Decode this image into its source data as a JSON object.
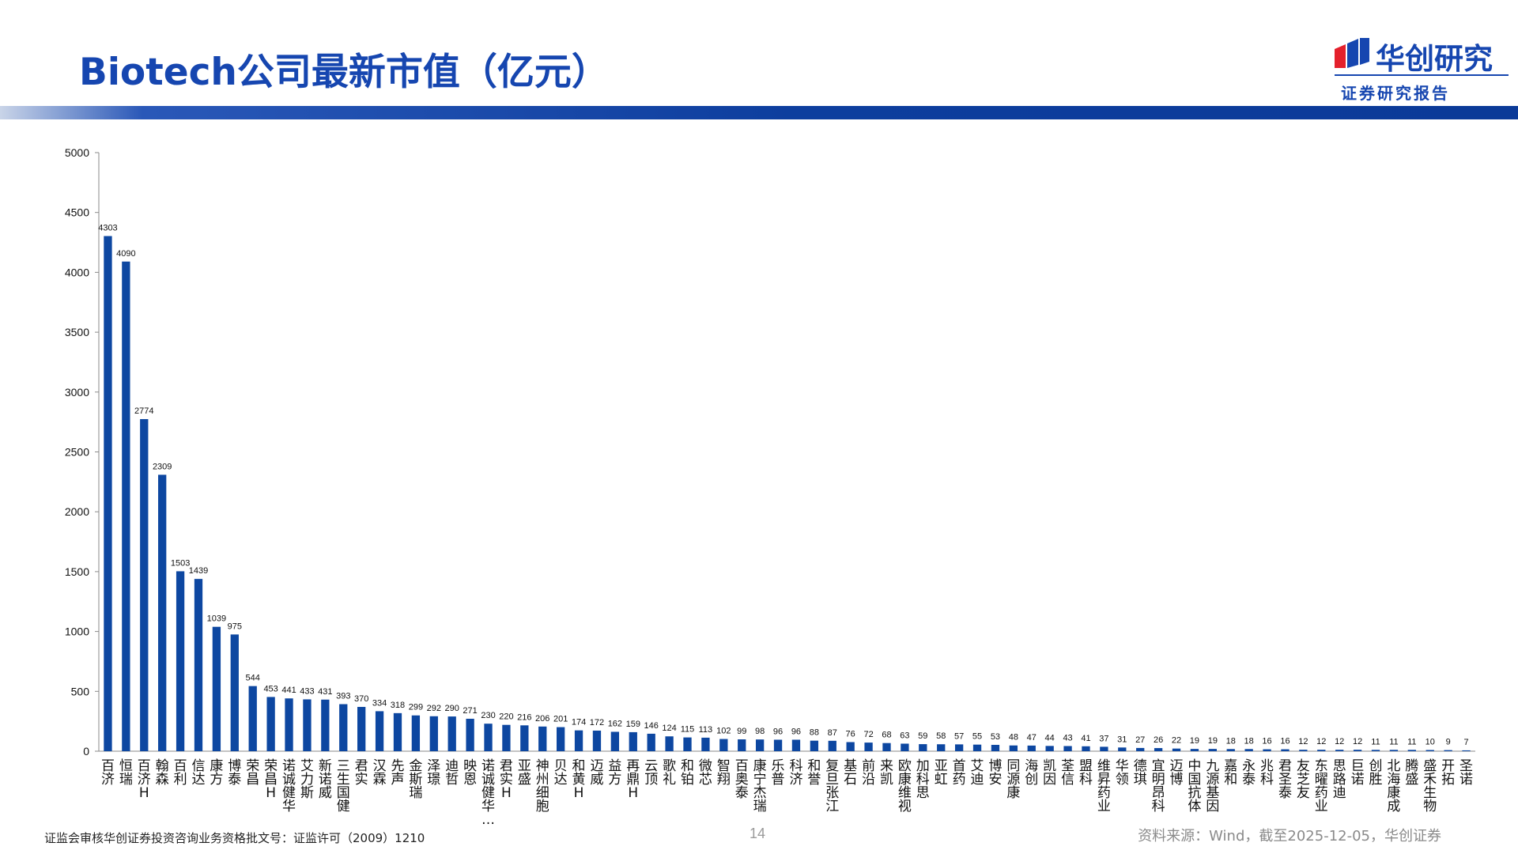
{
  "header": {
    "title": "Biotech公司最新市值（亿元）",
    "logo_name": "华创研究",
    "logo_sub": "证券研究报告"
  },
  "footer": {
    "license": "证监会审核华创证券投资咨询业务资格批文号：证监许可（2009）1210",
    "page_number": "14",
    "source": "资料来源：Wind，截至2025-12-05，华创证券"
  },
  "colors": {
    "bar": "#0d47a1",
    "accent": "#1646b0"
  },
  "chart_data": {
    "type": "bar",
    "ylim": [
      0,
      5000
    ],
    "yticks": [
      "0",
      "500",
      "1000",
      "1500",
      "2000",
      "2500",
      "3000",
      "3500",
      "4000",
      "4500",
      "5000"
    ],
    "grid": false,
    "legend": "none",
    "categories": [
      "百济",
      "恒瑞",
      "百济H",
      "翰森",
      "百利",
      "信达",
      "康方",
      "博泰",
      "荣昌",
      "荣昌H",
      "诺诚健华",
      "艾力斯",
      "新诺威",
      "三生国健",
      "君实",
      "汉霖",
      "先声",
      "金斯瑞",
      "泽璟",
      "迪哲",
      "映恩",
      "诺诚健华…",
      "君实H",
      "亚盛",
      "神州细胞",
      "贝达",
      "和黄H",
      "迈威",
      "益方",
      "再鼎H",
      "云顶",
      "歌礼",
      "和铂",
      "微芯",
      "智翔",
      "百奥泰",
      "康宁杰瑞",
      "乐普",
      "科济",
      "和誉",
      "复旦张江",
      "基石",
      "前沿",
      "来凯",
      "欧康维视",
      "加科思",
      "亚虹",
      "首药",
      "艾迪",
      "博安",
      "同源康",
      "海创",
      "凯因",
      "荃信",
      "盟科",
      "维昇药业",
      "华领",
      "德琪",
      "宜明昂科",
      "迈博",
      "中国抗体",
      "九源基因",
      "嘉和",
      "永泰",
      "兆科",
      "君圣泰",
      "友芝友",
      "东曜药业",
      "思路迪",
      "巨诺",
      "创胜",
      "北海康成",
      "腾盛",
      "盛禾生物",
      "开拓",
      "圣诺"
    ],
    "values": [
      4303,
      4090,
      2774,
      2309,
      1503,
      1439,
      1039,
      975,
      544,
      453,
      441,
      433,
      431,
      393,
      370,
      334,
      318,
      299,
      292,
      290,
      271,
      230,
      220,
      216,
      206,
      201,
      174,
      172,
      162,
      159,
      146,
      124,
      115,
      113,
      102,
      99,
      98,
      96,
      96,
      88,
      87,
      76,
      72,
      68,
      63,
      59,
      58,
      57,
      55,
      53,
      48,
      47,
      44,
      43,
      41,
      37,
      31,
      27,
      26,
      22,
      19,
      19,
      18,
      18,
      16,
      16,
      12,
      12,
      12,
      12,
      11,
      11,
      11,
      10,
      9,
      7
    ],
    "value_labels": [
      "4303",
      "4090",
      "2774",
      "2309",
      "1503",
      "1439",
      "1039",
      "975",
      "544",
      "453",
      "441",
      "433",
      "431",
      "393",
      "370",
      "334",
      "318",
      "299",
      "292",
      "290",
      "271",
      "230",
      "220",
      "216",
      "206",
      "201",
      "174",
      "172",
      "162",
      "159",
      "146",
      "124",
      "115",
      "113",
      "102",
      "99",
      "98",
      "96",
      "96",
      "88",
      "87",
      "76",
      "72",
      "68",
      "63",
      "59",
      "58",
      "57",
      "55",
      "53",
      "48",
      "47",
      "44",
      "43",
      "41",
      "37",
      "31",
      "27",
      "26",
      "22",
      "19",
      "19",
      "18",
      "18",
      "16",
      "16",
      "12",
      "12",
      "12",
      "12",
      "11",
      "11",
      "11",
      "10",
      "9",
      "7"
    ]
  }
}
